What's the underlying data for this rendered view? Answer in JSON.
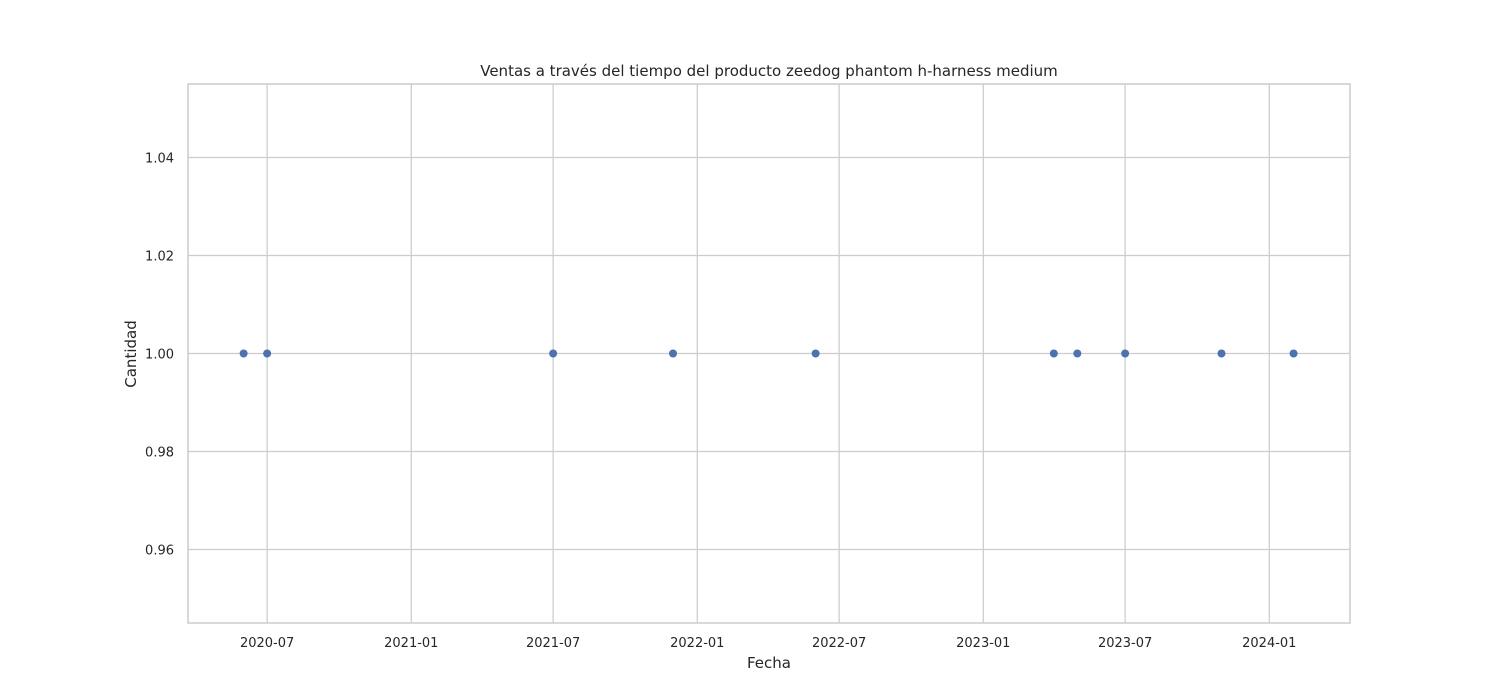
{
  "chart_data": {
    "type": "scatter",
    "title": "Ventas a través del tiempo del producto zeedog phantom h-harness medium",
    "xlabel": "Fecha",
    "ylabel": "Cantidad",
    "x_ticks": [
      "2020-07",
      "2021-01",
      "2021-07",
      "2022-01",
      "2022-07",
      "2023-01",
      "2023-07",
      "2024-01"
    ],
    "y_ticks": [
      "0.96",
      "0.98",
      "1.00",
      "1.02",
      "1.04"
    ],
    "xlim": [
      "2020-03-22",
      "2024-04-13"
    ],
    "ylim": [
      0.945,
      1.055
    ],
    "grid": true,
    "colors": {
      "points": "#4c72b0",
      "grid": "#cccccc"
    },
    "points": [
      {
        "x": "2020-06-01",
        "y": 1.0
      },
      {
        "x": "2020-07-01",
        "y": 1.0
      },
      {
        "x": "2021-07-01",
        "y": 1.0
      },
      {
        "x": "2021-12-01",
        "y": 1.0
      },
      {
        "x": "2022-06-01",
        "y": 1.0
      },
      {
        "x": "2023-04-01",
        "y": 1.0
      },
      {
        "x": "2023-05-01",
        "y": 1.0
      },
      {
        "x": "2023-07-01",
        "y": 1.0
      },
      {
        "x": "2023-11-01",
        "y": 1.0
      },
      {
        "x": "2024-02-01",
        "y": 1.0
      }
    ]
  }
}
